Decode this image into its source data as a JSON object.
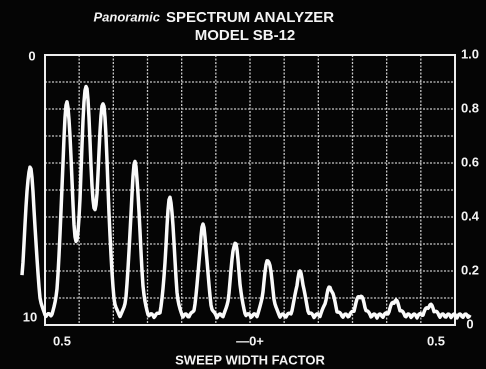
{
  "header": {
    "brand": "Panoramic",
    "title": "SPECTRUM ANALYZER",
    "model": "MODEL SB-12"
  },
  "left_scale": {
    "top": "0",
    "bottom": "10"
  },
  "right_scale": [
    "1.0",
    "0.8",
    "0.6",
    "0.4",
    "0.2",
    "0"
  ],
  "x_labels": [
    "0.5",
    "—0+",
    "0.5"
  ],
  "x_axis_title": "SWEEP WIDTH FACTOR"
}
